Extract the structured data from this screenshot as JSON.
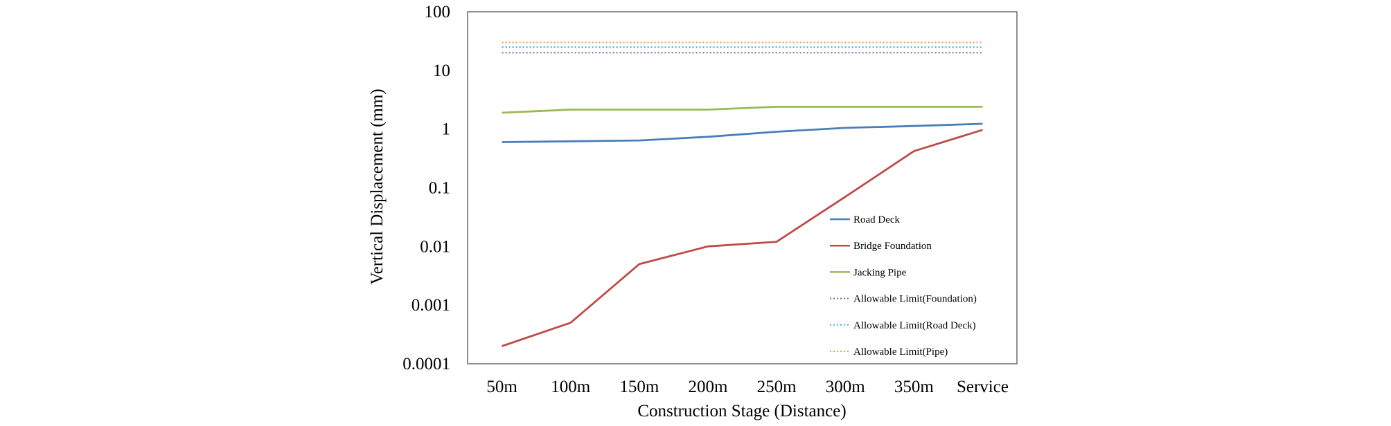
{
  "chart_data": {
    "type": "line",
    "title": "",
    "xlabel": "Construction Stage (Distance)",
    "ylabel": "Vertical Displacement (mm)",
    "yscale": "log",
    "ylim": [
      0.0001,
      100
    ],
    "yticks": [
      0.0001,
      0.001,
      0.01,
      0.1,
      1,
      10,
      100
    ],
    "ytick_labels": [
      "0.0001",
      "0.001",
      "0.01",
      "0.1",
      "1",
      "10",
      "100"
    ],
    "categories": [
      "50m",
      "100m",
      "150m",
      "200m",
      "250m",
      "300m",
      "350m",
      "Service"
    ],
    "grid": false,
    "legend_position": "inside-right",
    "series": [
      {
        "id": "road-deck",
        "name": "Road Deck",
        "color": "#4a7ebb",
        "style": "solid",
        "values": [
          0.6,
          0.62,
          0.64,
          0.74,
          0.9,
          1.05,
          1.13,
          1.23
        ]
      },
      {
        "id": "bridge-foundation",
        "name": "Bridge Foundation",
        "color": "#be4b48",
        "style": "solid",
        "values": [
          0.0002,
          0.0005,
          0.005,
          0.01,
          0.012,
          0.07,
          0.42,
          0.97
        ]
      },
      {
        "id": "jacking-pipe",
        "name": "Jacking Pipe",
        "color": "#98b954",
        "style": "solid",
        "values": [
          1.9,
          2.15,
          2.15,
          2.15,
          2.4,
          2.4,
          2.4,
          2.4
        ]
      },
      {
        "id": "limit-foundation",
        "name": "Allowable Limit(Foundation)",
        "color": "#7d60a0",
        "style": "dotted",
        "values": [
          20,
          20,
          20,
          20,
          20,
          20,
          20,
          20
        ]
      },
      {
        "id": "limit-road-deck",
        "name": "Allowable Limit(Road Deck)",
        "color": "#4bacc6",
        "style": "dotted",
        "values": [
          25,
          25,
          25,
          25,
          25,
          25,
          25,
          25
        ]
      },
      {
        "id": "limit-pipe",
        "name": "Allowable Limit(Pipe)",
        "color": "#f79646",
        "style": "dotted",
        "values": [
          30,
          30,
          30,
          30,
          30,
          30,
          30,
          30
        ]
      }
    ]
  }
}
